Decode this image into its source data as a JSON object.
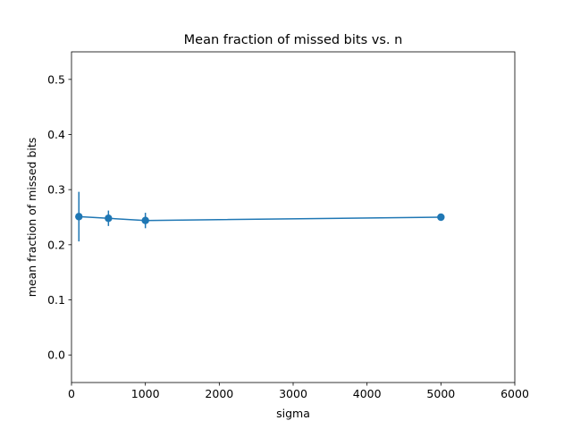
{
  "chart_data": {
    "type": "line",
    "title": "Mean fraction of missed bits vs. n",
    "xlabel": "sigma",
    "ylabel": "mean fraction of missed bits",
    "xlim": [
      0,
      6000
    ],
    "ylim": [
      -0.05,
      0.55
    ],
    "xticks": [
      0,
      1000,
      2000,
      3000,
      4000,
      5000,
      6000
    ],
    "xtick_labels": [
      "0",
      "1000",
      "2000",
      "3000",
      "4000",
      "5000",
      "6000"
    ],
    "yticks": [
      0.0,
      0.1,
      0.2,
      0.3,
      0.4,
      0.5
    ],
    "ytick_labels": [
      "0.0",
      "0.1",
      "0.2",
      "0.3",
      "0.4",
      "0.5"
    ],
    "grid": false,
    "legend": "none",
    "colors": {
      "series": "#1f77b4",
      "axes": "#000000",
      "background": "#ffffff"
    },
    "series": [
      {
        "x": [
          100,
          500,
          1000,
          5000
        ],
        "y": [
          0.251,
          0.248,
          0.244,
          0.25
        ],
        "yerr": [
          0.045,
          0.014,
          0.014,
          0.004
        ]
      }
    ]
  }
}
